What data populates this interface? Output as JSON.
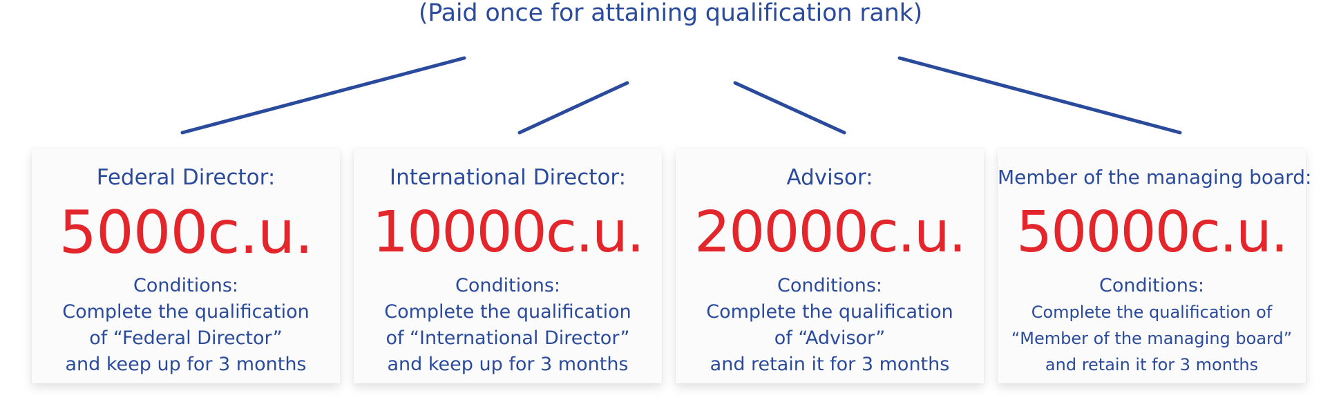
{
  "header": {
    "subtitle": "(Paid once for attaining qualification rank)"
  },
  "colors": {
    "accent_blue": "#2a4a9c",
    "amount_red": "#e3262b",
    "card_background": "#fbfbfb"
  },
  "cards": [
    {
      "title": "Federal Director:",
      "amount": "5000c.u.",
      "conditions_label": "Conditions:",
      "condition_lines": [
        "Complete the qualification",
        "of “Federal Director”",
        "and keep up for 3 months"
      ]
    },
    {
      "title": "International Director:",
      "amount": "10000c.u.",
      "conditions_label": "Conditions:",
      "condition_lines": [
        "Complete the qualification",
        "of “International Director”",
        "and keep up for 3 months"
      ]
    },
    {
      "title": "Advisor:",
      "amount": "20000c.u.",
      "conditions_label": "Conditions:",
      "condition_lines": [
        "Complete the qualification",
        "of “Advisor”",
        "and retain it for 3 months"
      ]
    },
    {
      "title": "Member of the managing board:",
      "amount": "50000c.u.",
      "conditions_label": "Conditions:",
      "condition_lines": [
        "Complete the qualification of",
        "“Member of the managing board”",
        "and retain it for 3 months"
      ]
    }
  ]
}
